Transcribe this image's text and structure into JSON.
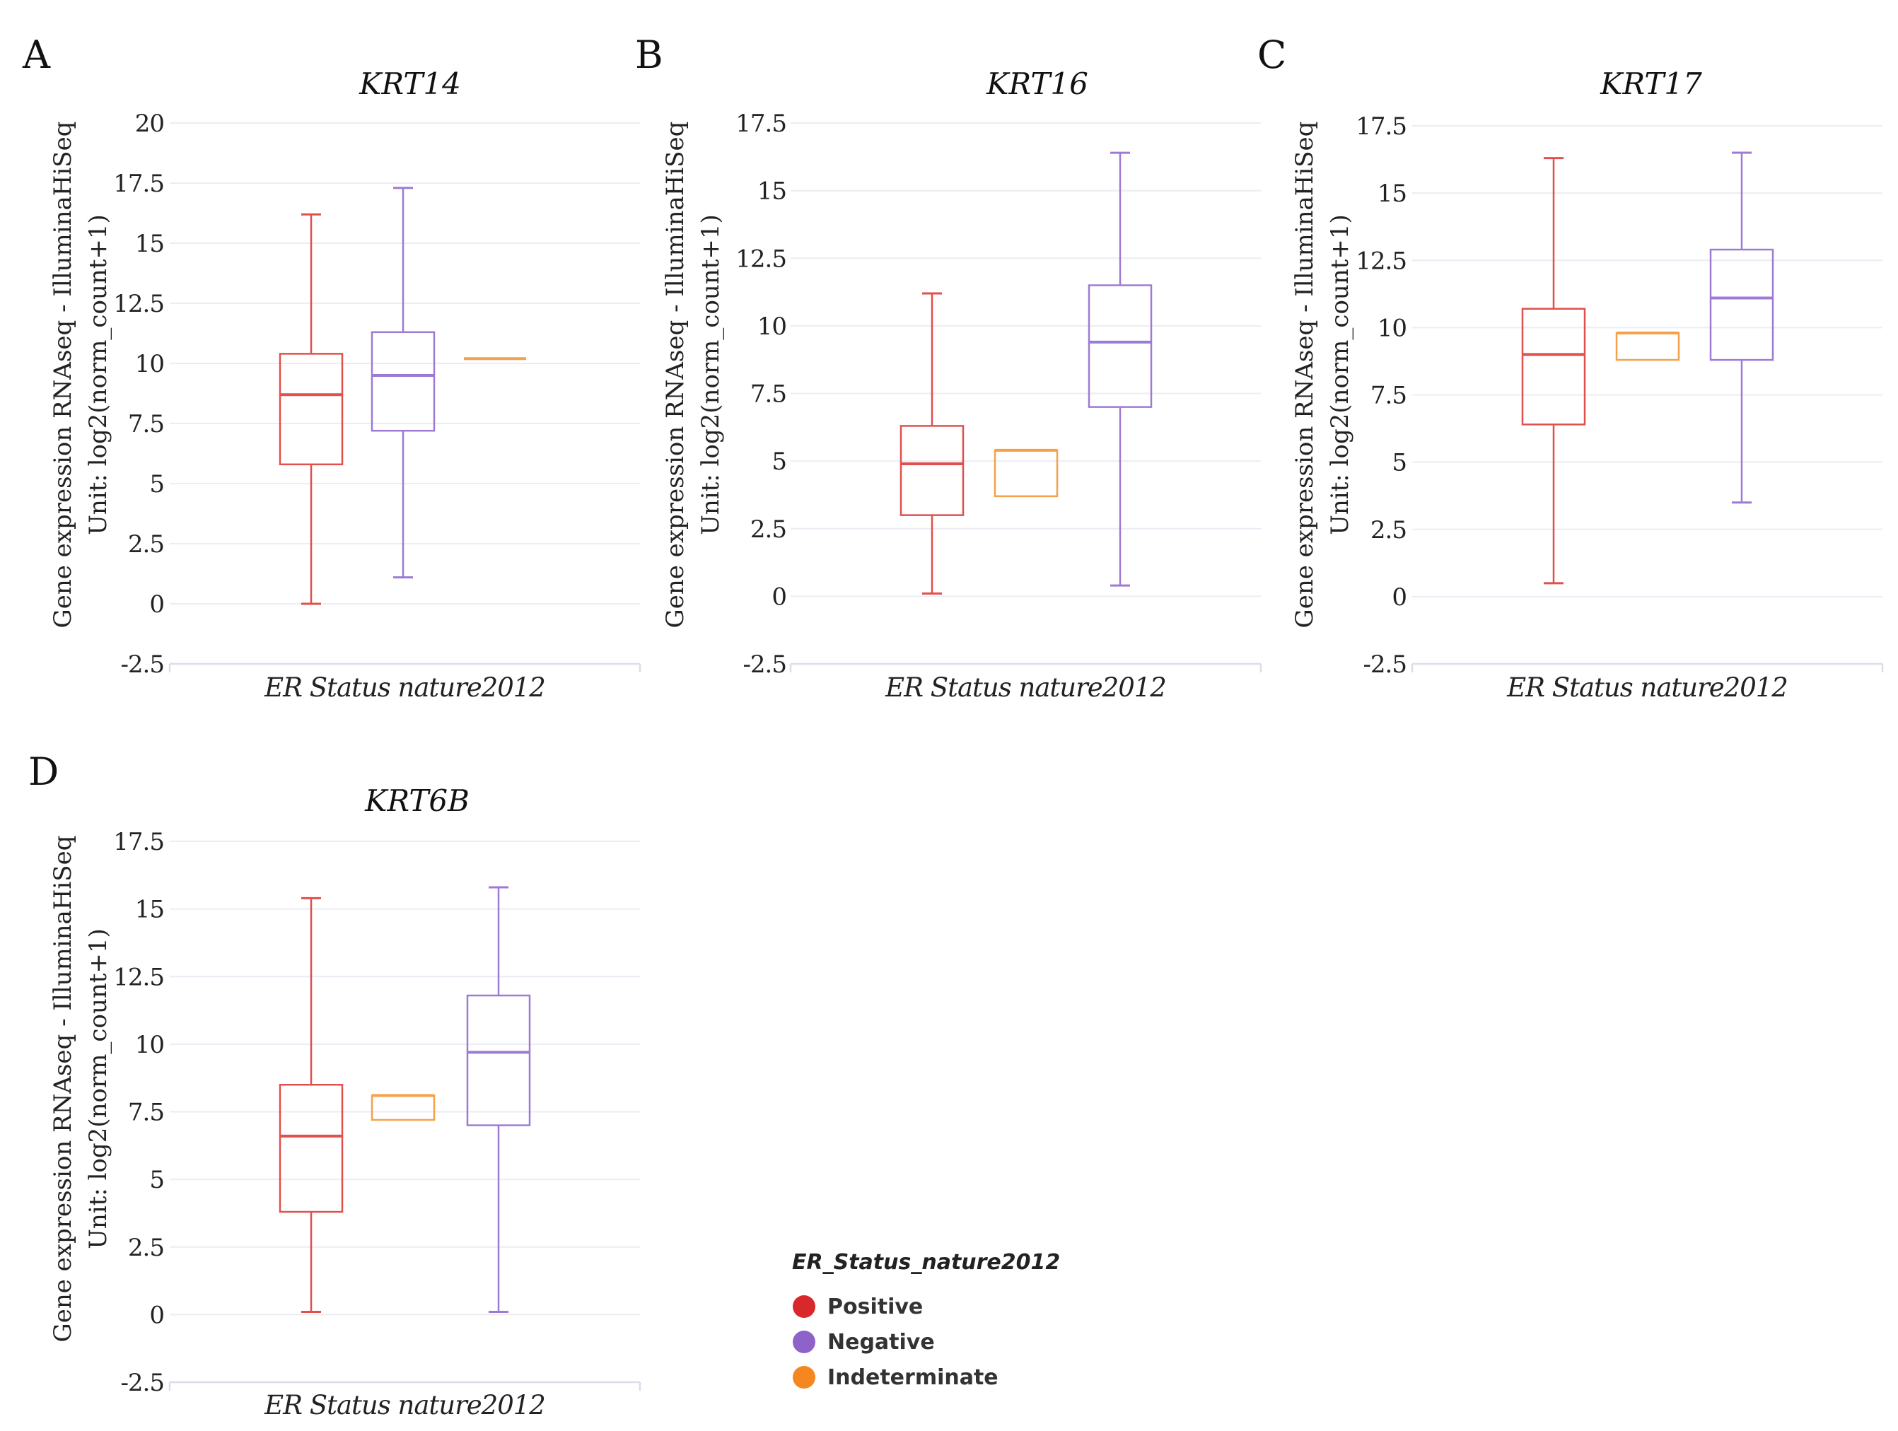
{
  "chart_data": [
    {
      "type": "box",
      "panel": "A",
      "title": "KRT14",
      "xlabel": "ER Status nature2012",
      "ylabel": [
        "Gene expression RNAseq - IlluminaHiSeq",
        "Unit: log2(norm_count+1)"
      ],
      "ylim": [
        -2.5,
        20
      ],
      "yticks": [
        "20",
        "17.5",
        "15",
        "12.5",
        "10",
        "7.5",
        "5",
        "2.5",
        "0",
        "-2.5"
      ],
      "series": [
        {
          "name": "Positive",
          "color": "#e0504c",
          "min": 0,
          "q1": 5.8,
          "median": 8.7,
          "q3": 10.4,
          "max": 16.2
        },
        {
          "name": "Negative",
          "color": "#9d7bd4",
          "min": 1.1,
          "q1": 7.2,
          "median": 9.5,
          "q3": 11.3,
          "max": 17.3
        },
        {
          "name": "Indeterminate",
          "color": "#f4a14a",
          "min": 10.2,
          "q1": 10.2,
          "median": 10.2,
          "q3": 10.2,
          "max": 10.2
        }
      ]
    },
    {
      "type": "box",
      "panel": "B",
      "title": "KRT16",
      "xlabel": "ER Status nature2012",
      "ylabel": [
        "Gene expression RNAseq - IlluminaHiSeq",
        "Unit: log2(norm_count+1)"
      ],
      "ylim": [
        -2.5,
        17.5
      ],
      "yticks": [
        "17.5",
        "15",
        "12.5",
        "10",
        "7.5",
        "5",
        "2.5",
        "0",
        "-2.5"
      ],
      "series": [
        {
          "name": "Positive",
          "color": "#e0504c",
          "min": 0.1,
          "q1": 3.0,
          "median": 4.9,
          "q3": 6.3,
          "max": 11.2
        },
        {
          "name": "Indeterminate",
          "color": "#f4a14a",
          "min": 3.7,
          "q1": 3.7,
          "median": 5.4,
          "q3": 5.4,
          "max": 5.4
        },
        {
          "name": "Negative",
          "color": "#9d7bd4",
          "min": 0.4,
          "q1": 7.0,
          "median": 9.4,
          "q3": 11.5,
          "max": 16.4
        }
      ]
    },
    {
      "type": "box",
      "panel": "C",
      "title": "KRT17",
      "xlabel": "ER Status nature2012",
      "ylabel": [
        "Gene expression RNAseq - IlluminaHiSeq",
        "Unit: log2(norm_count+1)"
      ],
      "ylim": [
        -2.5,
        17.5
      ],
      "yticks": [
        "17.5",
        "15",
        "12.5",
        "10",
        "7.5",
        "5",
        "2.5",
        "0",
        "-2.5"
      ],
      "series": [
        {
          "name": "Positive",
          "color": "#e0504c",
          "min": 0.5,
          "q1": 6.4,
          "median": 9.0,
          "q3": 10.7,
          "max": 16.3
        },
        {
          "name": "Indeterminate",
          "color": "#f4a14a",
          "min": 8.8,
          "q1": 8.8,
          "median": 9.8,
          "q3": 9.8,
          "max": 9.8
        },
        {
          "name": "Negative",
          "color": "#9d7bd4",
          "min": 3.5,
          "q1": 8.8,
          "median": 11.1,
          "q3": 12.9,
          "max": 16.5
        }
      ]
    },
    {
      "type": "box",
      "panel": "D",
      "title": "KRT6B",
      "xlabel": "ER Status nature2012",
      "ylabel": [
        "Gene expression RNAseq - IlluminaHiSeq",
        "Unit: log2(norm_count+1)"
      ],
      "ylim": [
        -2.5,
        17.5
      ],
      "yticks": [
        "17.5",
        "15",
        "12.5",
        "10",
        "7.5",
        "5",
        "2.5",
        "0",
        "-2.5"
      ],
      "series": [
        {
          "name": "Positive",
          "color": "#e0504c",
          "min": 0.1,
          "q1": 3.8,
          "median": 6.6,
          "q3": 8.5,
          "max": 15.4
        },
        {
          "name": "Indeterminate",
          "color": "#f4a14a",
          "min": 7.2,
          "q1": 7.2,
          "median": 8.1,
          "q3": 8.1,
          "max": 8.1
        },
        {
          "name": "Negative",
          "color": "#9d7bd4",
          "min": 0.1,
          "q1": 7.0,
          "median": 9.7,
          "q3": 11.8,
          "max": 15.8
        }
      ]
    }
  ],
  "legend": {
    "title": "ER_Status_nature2012",
    "items": [
      {
        "label": "Positive",
        "color": "#d9282b"
      },
      {
        "label": "Negative",
        "color": "#8e63c9"
      },
      {
        "label": "Indeterminate",
        "color": "#f6861f"
      }
    ]
  }
}
